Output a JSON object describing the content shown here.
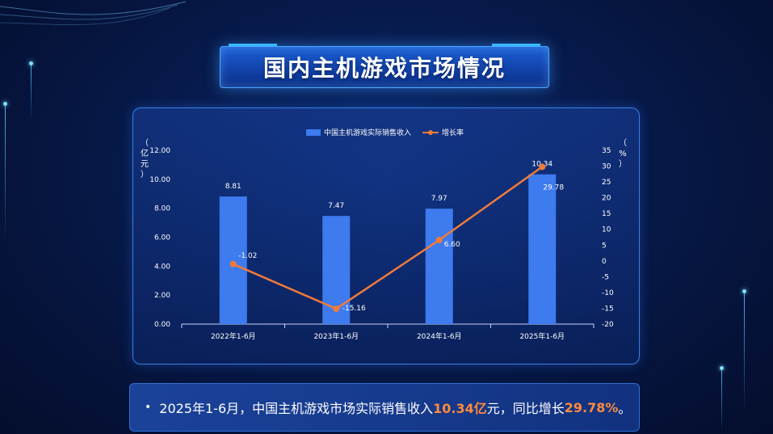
{
  "title": "国内主机游戏市场情况",
  "summary": {
    "bullet": "•",
    "part1": "2025年1-6月，中国主机游戏市场实际销售收入",
    "value1": "10.34亿",
    "part2": "元，同比增长",
    "value2": "29.78%",
    "part3": "。"
  },
  "chart_data": {
    "type": "bar+line",
    "categories": [
      "2022年1-6月",
      "2023年1-6月",
      "2024年1-6月",
      "2025年1-6月"
    ],
    "series": [
      {
        "name": "中国主机游戏实际销售收入",
        "type": "bar",
        "axis": "left",
        "values": [
          8.81,
          7.47,
          7.97,
          10.34
        ],
        "color": "#3d7bef"
      },
      {
        "name": "增长率",
        "type": "line",
        "axis": "right",
        "values": [
          -1.02,
          -15.16,
          6.6,
          29.78
        ],
        "color": "#f07a3a"
      }
    ],
    "bar_labels": [
      "8.81",
      "7.47",
      "7.97",
      "10.34"
    ],
    "line_labels": [
      "-1.02",
      "-15.16",
      "6.60",
      "29.78"
    ],
    "left_axis": {
      "label_chars": [
        "（",
        "亿",
        "元",
        "）"
      ],
      "ylim": [
        0,
        12
      ],
      "ticks": [
        "0.00",
        "2.00",
        "4.00",
        "6.00",
        "8.00",
        "10.00",
        "12.00"
      ]
    },
    "right_axis": {
      "label_chars": [
        "（",
        "%",
        "）"
      ],
      "ylim": [
        -20,
        35
      ],
      "ticks": [
        "-20",
        "-15",
        "-10",
        "-5",
        "0",
        "5",
        "10",
        "15",
        "20",
        "25",
        "30",
        "35"
      ]
    },
    "legend_position": "top-center",
    "grid": false
  }
}
